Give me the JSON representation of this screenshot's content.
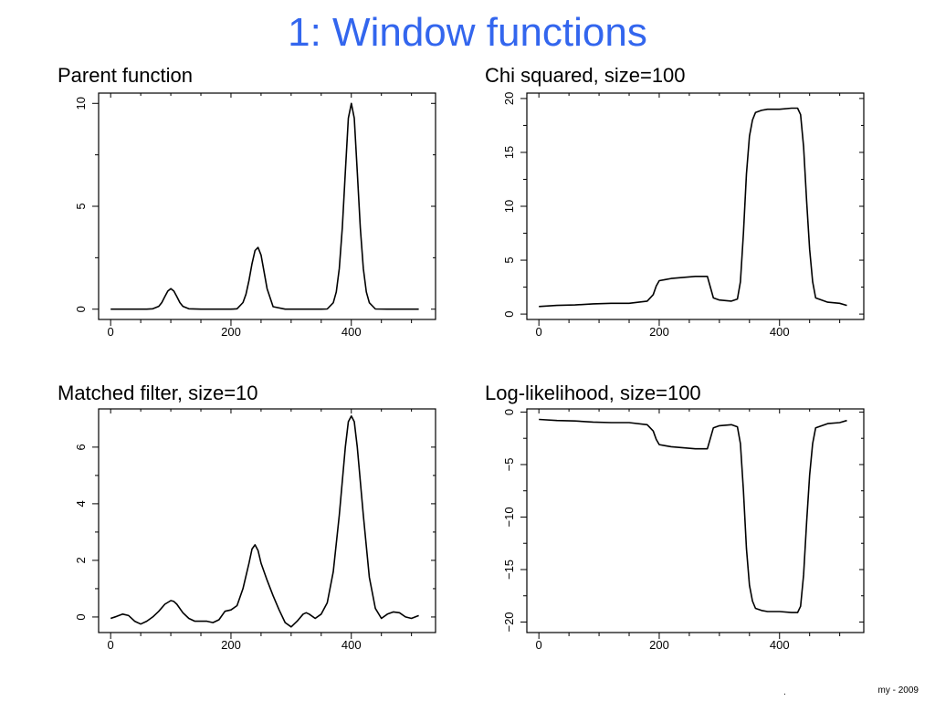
{
  "slide": {
    "title": "1: Window functions",
    "footer": "my - 2009",
    "footer_mark": "."
  },
  "chart_data": [
    {
      "type": "line",
      "title": "Parent function",
      "xlabel": "",
      "ylabel": "",
      "xlim": [
        -20,
        540
      ],
      "ylim": [
        -0.5,
        10.5
      ],
      "xticks": [
        0,
        200,
        400
      ],
      "yticks": [
        0,
        5,
        10
      ],
      "xticklabels": [
        "0",
        "200",
        "400"
      ],
      "yticklabels": [
        "0",
        "5",
        "10"
      ],
      "grid": false,
      "series": [
        {
          "x": [
            0,
            20,
            40,
            60,
            70,
            80,
            85,
            90,
            95,
            100,
            105,
            110,
            115,
            120,
            130,
            150,
            170,
            190,
            200,
            210,
            220,
            225,
            230,
            235,
            240,
            245,
            250,
            255,
            260,
            270,
            290,
            310,
            330,
            350,
            360,
            370,
            375,
            380,
            385,
            390,
            395,
            400,
            405,
            410,
            415,
            420,
            425,
            430,
            440,
            460,
            480,
            500,
            512
          ],
          "y": [
            0,
            0,
            0,
            0,
            0.02,
            0.14,
            0.32,
            0.61,
            0.88,
            1.0,
            0.88,
            0.61,
            0.32,
            0.14,
            0.02,
            0,
            0,
            0,
            0,
            0.02,
            0.32,
            0.73,
            1.4,
            2.21,
            2.85,
            3.0,
            2.63,
            1.82,
            1.0,
            0.12,
            0,
            0,
            0,
            0,
            0.01,
            0.31,
            0.84,
            1.98,
            3.96,
            6.66,
            9.28,
            10.0,
            9.28,
            6.66,
            3.96,
            1.98,
            0.84,
            0.31,
            0.01,
            0,
            0,
            0,
            0
          ]
        }
      ]
    },
    {
      "type": "line",
      "title": "Chi squared, size=100",
      "xlabel": "",
      "ylabel": "",
      "xlim": [
        -20,
        540
      ],
      "ylim": [
        -0.5,
        20.5
      ],
      "xticks": [
        0,
        200,
        400
      ],
      "yticks": [
        0,
        5,
        10,
        15,
        20
      ],
      "xticklabels": [
        "0",
        "200",
        "400"
      ],
      "yticklabels": [
        "0",
        "5",
        "10",
        "15",
        "20"
      ],
      "grid": false,
      "series": [
        {
          "x": [
            0,
            30,
            60,
            90,
            120,
            150,
            180,
            190,
            195,
            200,
            210,
            220,
            240,
            260,
            280,
            285,
            290,
            300,
            320,
            330,
            335,
            340,
            345,
            350,
            355,
            360,
            370,
            380,
            400,
            420,
            430,
            435,
            440,
            445,
            450,
            455,
            460,
            480,
            500,
            512
          ],
          "y": [
            0.7,
            0.8,
            0.85,
            0.95,
            1.0,
            1.0,
            1.2,
            1.8,
            2.6,
            3.1,
            3.2,
            3.3,
            3.4,
            3.5,
            3.5,
            2.5,
            1.5,
            1.3,
            1.2,
            1.4,
            3.0,
            7.5,
            13.0,
            16.5,
            18.0,
            18.7,
            18.9,
            19.0,
            19.0,
            19.1,
            19.1,
            18.5,
            15.5,
            10.5,
            6.0,
            3.0,
            1.5,
            1.1,
            1.0,
            0.8
          ]
        }
      ]
    },
    {
      "type": "line",
      "title": "Matched filter, size=10",
      "xlabel": "",
      "ylabel": "",
      "xlim": [
        -20,
        540
      ],
      "ylim": [
        -0.55,
        7.35
      ],
      "xticks": [
        0,
        200,
        400
      ],
      "yticks": [
        0,
        2,
        4,
        6
      ],
      "xticklabels": [
        "0",
        "200",
        "400"
      ],
      "yticklabels": [
        "0",
        "2",
        "4",
        "6"
      ],
      "grid": false,
      "series": [
        {
          "x": [
            0,
            10,
            20,
            30,
            40,
            50,
            60,
            70,
            80,
            90,
            100,
            105,
            110,
            120,
            130,
            140,
            150,
            160,
            170,
            180,
            190,
            200,
            210,
            220,
            230,
            235,
            240,
            245,
            250,
            260,
            270,
            280,
            290,
            300,
            310,
            320,
            325,
            330,
            340,
            350,
            360,
            370,
            380,
            390,
            395,
            400,
            405,
            410,
            420,
            430,
            440,
            450,
            460,
            470,
            480,
            490,
            500,
            512
          ],
          "y": [
            -0.05,
            0.02,
            0.1,
            0.05,
            -0.15,
            -0.25,
            -0.15,
            0.0,
            0.2,
            0.45,
            0.58,
            0.55,
            0.45,
            0.15,
            -0.05,
            -0.15,
            -0.15,
            -0.15,
            -0.2,
            -0.1,
            0.2,
            0.25,
            0.4,
            1.0,
            1.9,
            2.4,
            2.55,
            2.35,
            1.9,
            1.3,
            0.75,
            0.25,
            -0.2,
            -0.35,
            -0.15,
            0.1,
            0.15,
            0.1,
            -0.05,
            0.1,
            0.5,
            1.6,
            3.6,
            6.0,
            6.9,
            7.1,
            6.9,
            6.0,
            3.6,
            1.4,
            0.3,
            -0.05,
            0.1,
            0.18,
            0.15,
            0.0,
            -0.05,
            0.05
          ]
        }
      ]
    },
    {
      "type": "line",
      "title": "Log-likelihood, size=100",
      "xlabel": "",
      "ylabel": "",
      "xlim": [
        -20,
        540
      ],
      "ylim": [
        -21,
        0.3
      ],
      "xticks": [
        0,
        200,
        400
      ],
      "yticks": [
        0,
        -5,
        -10,
        -15,
        -20
      ],
      "xticklabels": [
        "0",
        "200",
        "400"
      ],
      "yticklabels": [
        "0",
        "−5",
        "−10",
        "−15",
        "−20"
      ],
      "grid": false,
      "series": [
        {
          "x": [
            0,
            30,
            60,
            90,
            120,
            150,
            180,
            190,
            195,
            200,
            210,
            220,
            240,
            260,
            280,
            285,
            290,
            300,
            320,
            330,
            335,
            340,
            345,
            350,
            355,
            360,
            370,
            380,
            400,
            420,
            430,
            435,
            440,
            445,
            450,
            455,
            460,
            480,
            500,
            512
          ],
          "y": [
            -0.7,
            -0.8,
            -0.85,
            -0.95,
            -1.0,
            -1.0,
            -1.2,
            -1.8,
            -2.6,
            -3.1,
            -3.2,
            -3.3,
            -3.4,
            -3.5,
            -3.5,
            -2.5,
            -1.5,
            -1.3,
            -1.2,
            -1.4,
            -3.0,
            -7.5,
            -13.0,
            -16.5,
            -18.0,
            -18.7,
            -18.9,
            -19.0,
            -19.0,
            -19.1,
            -19.1,
            -18.5,
            -15.5,
            -10.5,
            -6.0,
            -3.0,
            -1.5,
            -1.1,
            -1.0,
            -0.8
          ]
        }
      ]
    }
  ]
}
